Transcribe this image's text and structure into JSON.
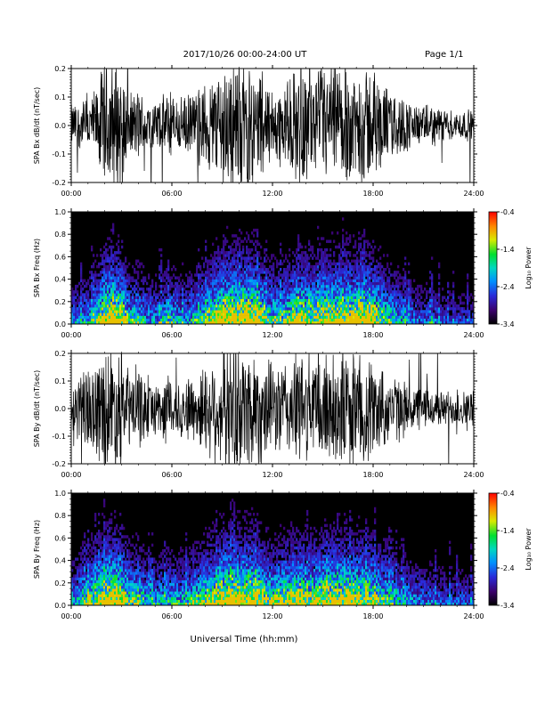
{
  "header": {
    "title": "2017/10/26  00:00-24:00 UT",
    "page": "Page 1/1"
  },
  "xlabel": "Universal Time (hh:mm)",
  "chart_data": [
    {
      "type": "line",
      "ylabel": "SPA Bx dB/dt (nT/sec)",
      "xlim": [
        0,
        24
      ],
      "ylim": [
        -0.2,
        0.2
      ],
      "xticks": [
        "00:00",
        "06:00",
        "12:00",
        "18:00",
        "24:00"
      ],
      "yticks": [
        "-0.2",
        "-0.1",
        "0.0",
        "0.1",
        "0.2"
      ],
      "envelope": {
        "hours": [
          0,
          0.5,
          1,
          1.5,
          2,
          2.5,
          3,
          3.5,
          4,
          4.5,
          5,
          5.5,
          6,
          6.5,
          7,
          7.5,
          8,
          8.5,
          9,
          9.5,
          10,
          10.5,
          11,
          11.5,
          12,
          12.5,
          13,
          13.5,
          14,
          14.5,
          15,
          15.5,
          16,
          16.5,
          17,
          17.5,
          18,
          18.5,
          19,
          19.5,
          20,
          20.5,
          21,
          21.5,
          22,
          22.5,
          23,
          23.5,
          24
        ],
        "amplitude": [
          0.07,
          0.08,
          0.09,
          0.12,
          0.22,
          0.22,
          0.2,
          0.1,
          0.12,
          0.09,
          0.08,
          0.1,
          0.11,
          0.09,
          0.1,
          0.12,
          0.14,
          0.18,
          0.22,
          0.22,
          0.22,
          0.22,
          0.22,
          0.15,
          0.13,
          0.13,
          0.15,
          0.2,
          0.18,
          0.16,
          0.2,
          0.2,
          0.2,
          0.2,
          0.19,
          0.2,
          0.19,
          0.15,
          0.12,
          0.1,
          0.09,
          0.07,
          0.06,
          0.07,
          0.06,
          0.05,
          0.05,
          0.05,
          0.05
        ]
      }
    },
    {
      "type": "heatmap",
      "ylabel": "SPA Bx Freq (Hz)",
      "xlim": [
        0,
        24
      ],
      "ylim": [
        0.0,
        1.0
      ],
      "xticks": [
        "00:00",
        "06:00",
        "12:00",
        "18:00",
        "24:00"
      ],
      "yticks": [
        "0.0",
        "0.2",
        "0.4",
        "0.6",
        "0.8",
        "1.0"
      ],
      "colorbar": {
        "label": "Log₁₀ Power",
        "range": [
          -3.4,
          -0.4
        ],
        "ticks": [
          "-0.4",
          "-1.4",
          "-2.4",
          "-3.4"
        ]
      }
    },
    {
      "type": "line",
      "ylabel": "SPA By dB/dt (nT/sec)",
      "xlim": [
        0,
        24
      ],
      "ylim": [
        -0.2,
        0.2
      ],
      "xticks": [
        "00:00",
        "06:00",
        "12:00",
        "18:00",
        "24:00"
      ],
      "yticks": [
        "-0.2",
        "-0.1",
        "0.0",
        "0.1",
        "0.2"
      ],
      "envelope": {
        "hours": [
          0,
          0.5,
          1,
          1.5,
          2,
          2.5,
          3,
          3.5,
          4,
          4.5,
          5,
          5.5,
          6,
          6.5,
          7,
          7.5,
          8,
          8.5,
          9,
          9.5,
          10,
          10.5,
          11,
          11.5,
          12,
          12.5,
          13,
          13.5,
          14,
          14.5,
          15,
          15.5,
          16,
          16.5,
          17,
          17.5,
          18,
          18.5,
          19,
          19.5,
          20,
          20.5,
          21,
          21.5,
          22,
          22.5,
          23,
          23.5,
          24
        ],
        "amplitude": [
          0.09,
          0.11,
          0.14,
          0.16,
          0.22,
          0.22,
          0.2,
          0.13,
          0.14,
          0.1,
          0.09,
          0.1,
          0.11,
          0.1,
          0.11,
          0.13,
          0.15,
          0.18,
          0.22,
          0.22,
          0.22,
          0.22,
          0.22,
          0.17,
          0.15,
          0.16,
          0.17,
          0.19,
          0.18,
          0.17,
          0.19,
          0.2,
          0.2,
          0.2,
          0.19,
          0.19,
          0.17,
          0.14,
          0.12,
          0.1,
          0.09,
          0.08,
          0.07,
          0.07,
          0.06,
          0.06,
          0.06,
          0.06,
          0.06
        ]
      }
    },
    {
      "type": "heatmap",
      "ylabel": "SPA By Freq (Hz)",
      "xlim": [
        0,
        24
      ],
      "ylim": [
        0.0,
        1.0
      ],
      "xticks": [
        "00:00",
        "06:00",
        "12:00",
        "18:00",
        "24:00"
      ],
      "yticks": [
        "0.0",
        "0.2",
        "0.4",
        "0.6",
        "0.8",
        "1.0"
      ],
      "colorbar": {
        "label": "Log₁₀ Power",
        "range": [
          -3.4,
          -0.4
        ],
        "ticks": [
          "-0.4",
          "-1.4",
          "-2.4",
          "-3.4"
        ]
      }
    }
  ]
}
